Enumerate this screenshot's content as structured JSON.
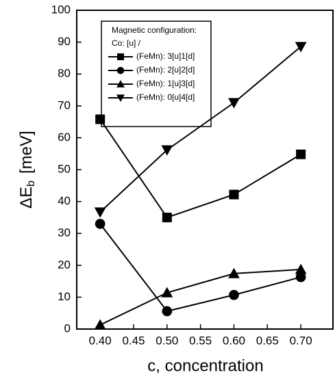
{
  "chart_data": {
    "type": "line",
    "x_label": "c, concentration",
    "y_label": {
      "main": "ΔE",
      "sub": "b",
      "unit": "[meV]"
    },
    "legend_title": [
      "Magnetic configuration:",
      "Co: [u] /"
    ],
    "legend": "upper left",
    "x": [
      0.4,
      0.5,
      0.6,
      0.7
    ],
    "xlim": [
      0.365,
      0.748
    ],
    "xticks": [
      {
        "value": 0.4,
        "label": "0.40"
      },
      0.45,
      {
        "value": 0.5,
        "label": "0.50"
      },
      0.55,
      {
        "value": 0.6,
        "label": "0.60"
      },
      0.65,
      {
        "value": 0.7,
        "label": "0.70"
      }
    ],
    "ylim": [
      0,
      100
    ],
    "yticks": [
      0,
      10,
      20,
      30,
      40,
      50,
      60,
      70,
      80,
      90,
      100
    ],
    "series": [
      {
        "name": "(FeMn): 3[u]1[d]",
        "color": "#000000",
        "marker": "square",
        "values": [
          65.8,
          35,
          42.2,
          54.8
        ]
      },
      {
        "name": "(FeMn): 2[u]2[d]",
        "color": "#000000",
        "marker": "circle",
        "values": [
          33,
          5.6,
          10.7,
          16.3
        ]
      },
      {
        "name": "(FeMn): 1[u]3[d]",
        "color": "#000000",
        "marker": "triangle-up",
        "values": [
          1.3,
          11.4,
          17.4,
          18.7
        ]
      },
      {
        "name": "(FeMn): 0[u]4[d]",
        "color": "#000000",
        "marker": "triangle-down",
        "values": [
          36.7,
          56.2,
          71,
          88.6
        ]
      }
    ]
  }
}
